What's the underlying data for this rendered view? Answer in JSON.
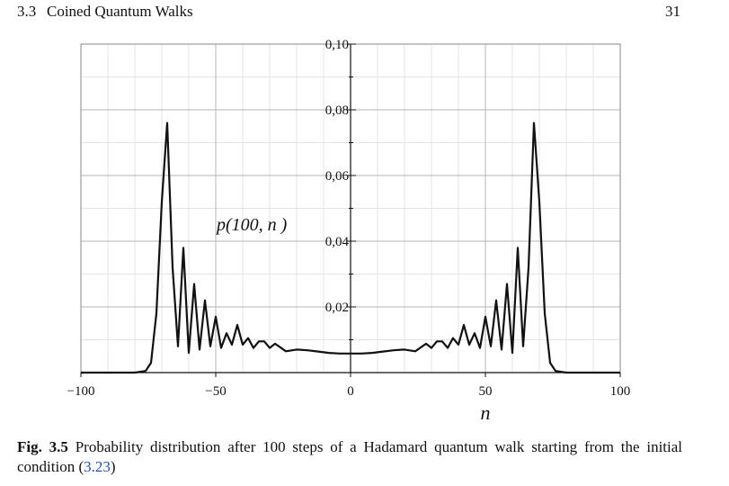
{
  "running_head": {
    "section_number": "3.3",
    "section_title": "Coined Quantum Walks",
    "page_number": "31"
  },
  "figure": {
    "function_label": "p(100, n )",
    "caption_label": "Fig. 3.5",
    "caption_text": "Probability distribution after 100 steps of a Hadamard quantum walk starting from the initial condition (",
    "caption_ref": "3.23",
    "caption_tail": ")"
  },
  "chart_data": {
    "type": "line",
    "title": "",
    "xlabel": "n",
    "ylabel": "",
    "xlim": [
      -100,
      100
    ],
    "ylim": [
      0,
      0.1
    ],
    "x_ticks": [
      -100,
      -50,
      0,
      50,
      100
    ],
    "x_tick_labels": [
      "−100",
      "−50",
      "0",
      "50",
      "100"
    ],
    "y_ticks": [
      0.02,
      0.04,
      0.06,
      0.08,
      0.1
    ],
    "y_tick_labels": [
      "0,02",
      "0,04",
      "0,06",
      "0,08",
      "0,10"
    ],
    "grid": true,
    "series": [
      {
        "x": [
          -100,
          -80,
          -76,
          -74,
          -72,
          -70,
          -68,
          -66,
          -64,
          -62,
          -60,
          -58,
          -56,
          -54,
          -52,
          -50,
          -48,
          -46,
          -44,
          -42,
          -40,
          -38,
          -36,
          -34,
          -32,
          -30,
          -28,
          -24,
          -20,
          -16,
          -12,
          -8,
          -4,
          0,
          4,
          8,
          12,
          16,
          20,
          24,
          28,
          30,
          32,
          34,
          36,
          38,
          40,
          42,
          44,
          46,
          48,
          50,
          52,
          54,
          56,
          58,
          60,
          62,
          64,
          66,
          68,
          70,
          72,
          74,
          76,
          80,
          100
        ],
        "y": [
          0,
          0,
          0.0005,
          0.003,
          0.018,
          0.052,
          0.076,
          0.032,
          0.008,
          0.038,
          0.006,
          0.027,
          0.007,
          0.022,
          0.008,
          0.017,
          0.0075,
          0.012,
          0.0085,
          0.0145,
          0.0085,
          0.0105,
          0.0075,
          0.0095,
          0.0095,
          0.0075,
          0.0088,
          0.0065,
          0.007,
          0.0068,
          0.0064,
          0.006,
          0.0058,
          0.0058,
          0.0058,
          0.006,
          0.0064,
          0.0068,
          0.007,
          0.0065,
          0.0088,
          0.0075,
          0.0095,
          0.0095,
          0.0075,
          0.0105,
          0.0085,
          0.0145,
          0.0085,
          0.012,
          0.0075,
          0.017,
          0.008,
          0.022,
          0.007,
          0.027,
          0.006,
          0.038,
          0.008,
          0.032,
          0.076,
          0.052,
          0.018,
          0.003,
          0.0005,
          0,
          0
        ],
        "color": "#111111"
      }
    ]
  }
}
